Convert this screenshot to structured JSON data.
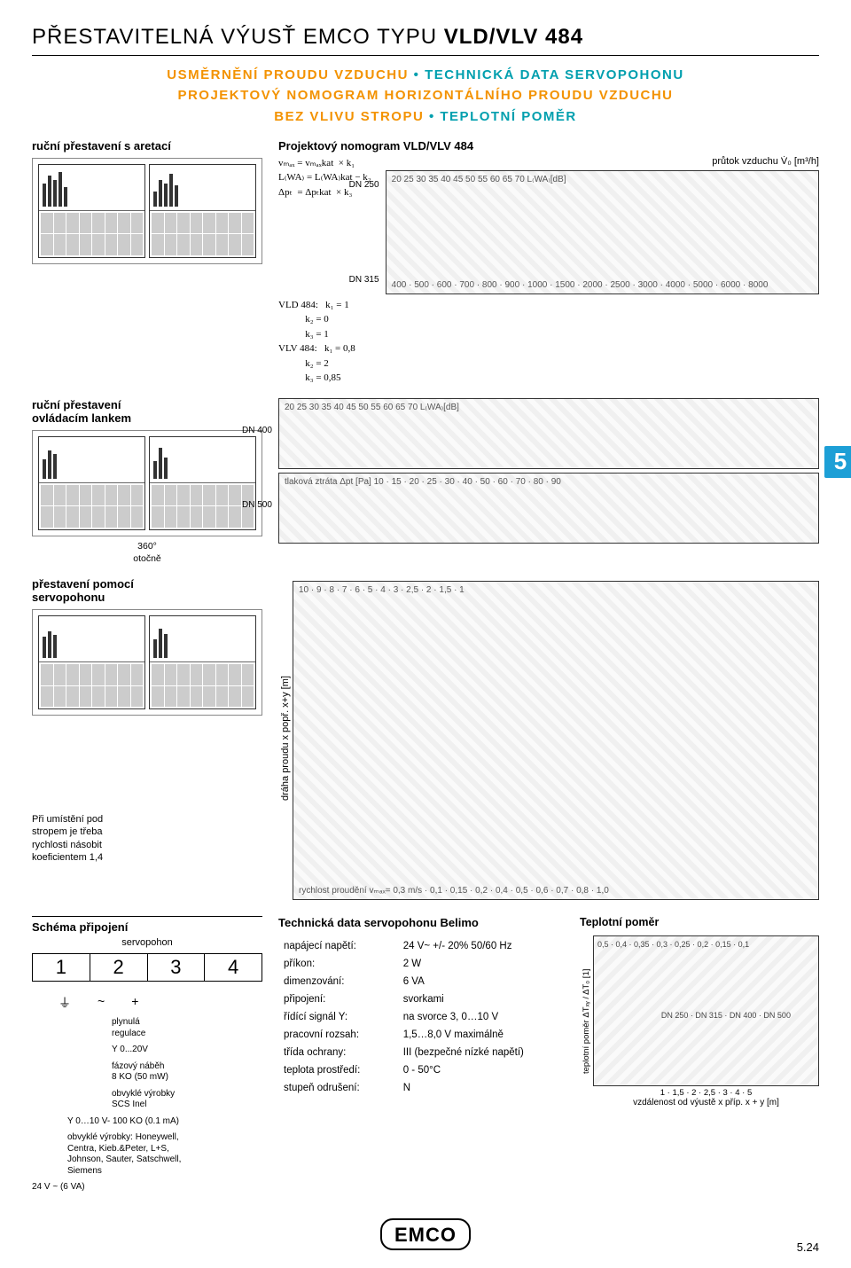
{
  "header": {
    "title_pre": "PŘESTAVITELNÁ VÝUSŤ EMCO TYPU ",
    "title_bold": "VLD/VLV 484",
    "line1a": "USMĚRNĚNÍ PROUDU VZDUCHU",
    "line1b": "TECHNICKÁ DATA SERVOPOHONU",
    "line2a": "PROJEKTOVÝ NOMOGRAM HORIZONTÁLNÍHO PROUDU VZDUCHU",
    "line3a": "BEZ VLIVU STROPU",
    "line3b": "TEPLOTNÍ POMĚR",
    "bullet": "•"
  },
  "col_left": {
    "manual_lock": "ruční přestavení s aretací",
    "cable": "ruční přestavení\novládacím lankem",
    "cable_note": "360°\notočně",
    "servo": "přestavení pomocí\nservopohonu"
  },
  "nomogram": {
    "title": "Projektový nomogram VLD/VLV 484",
    "flow_lbl": "průtok vzduchu V̇₀ [m³/h]",
    "formulas": "vₘₐₓ = vₘₐₓkat  × k₁\nL₍WA₎ = L₍WA₎kat − k₂\nΔpₜ  = Δpₜkat  × k₃",
    "coeffs": "VLD 484:   k₁ = 1\n           k₂ = 0\n           k₃ = 1\nVLV 484:   k₁ = 0,8\n           k₂ = 2\n           k₃ = 0,85",
    "dn": [
      "DN 250",
      "DN 315",
      "DN 400",
      "DN 500"
    ],
    "top_ticks": "400 · 500 · 600 · 700 · 800 · 900 · 1000 · 1500 · 2000 · 2500 · 3000 · 4000 · 5000 · 6000 · 8000",
    "lwa_ticks": "20 25 30 35 40 45 50 55 60 65 70  L₍WA₎[dB]",
    "ploss": "tlaková ztráta  Δpt [Pa]  10 · 15 · 20 · 25 · 30 · 40 · 50 · 60 · 70 · 80 · 90",
    "y_label": "dráha proudu x popř. x+y [m]",
    "y_ticks": "10 · 9 · 8 · 7 · 6 · 5 · 4 · 3 · 2,5 · 2 · 1,5 · 1",
    "v_lines": "rychlost proudění vₘₐₓ= 0,3 m/s  · 0,1 · 0,15 · 0,2 · 0,4 · 0,5 · 0,6 · 0,7 · 0,8 · 1,0",
    "strop_note": "Při umístění pod\nstropem je třeba\nrychlosti násobit\nkoeficientem 1,4"
  },
  "side_marker": "5",
  "schema": {
    "title": "Schéma připojení",
    "servo_label": "servopohon",
    "terminals": [
      "1",
      "2",
      "3",
      "4"
    ],
    "reg_lbl": "plynulá\nregulace",
    "y_lbl": "Y 0...20V",
    "phase_lbl": "fázový náběh\n8 KO (50 mW)",
    "prods_lbl": "obvyklé výrobky\nSCS        Inel",
    "y10_lbl": "Y 0…10 V-   100 KO (0.1 mA)",
    "mfr_lbl": "obvyklé výrobky: Honeywell,\nCentra, Kieb.&Peter, L+S,\nJohnson, Sauter, Satschwell,\nSiemens",
    "supply_lbl": "24 V ~   (6 VA)"
  },
  "techdata": {
    "title": "Technická data servopohonu Belimo",
    "rows": [
      [
        "napájecí napětí:",
        "24 V~ +/- 20% 50/60 Hz"
      ],
      [
        "příkon:",
        "2 W"
      ],
      [
        "dimenzování:",
        "6 VA"
      ],
      [
        "připojení:",
        "svorkami"
      ],
      [
        "řídící signál Y:",
        "na svorce 3,      0…10 V"
      ],
      [
        "pracovní rozsah:",
        "1,5…8,0 V maximálně"
      ],
      [
        "třída ochrany:",
        "III (bezpečné nízké napětí)"
      ],
      [
        "teplota prostředí:",
        "0 - 50°C"
      ],
      [
        "stupeň odrušení:",
        "N"
      ]
    ]
  },
  "temp": {
    "title": "Teplotní poměr",
    "y_label": "teplotní poměr ΔTₓᵧ / ΔT₀ [1]",
    "y_ticks": "0,5 · 0,4 · 0,35 · 0,3 · 0,25 · 0,2 · 0,15 · 0,1",
    "x_label": "vzdálenost od výustě x příp. x + y [m]",
    "x_ticks": "1 · 1,5 · 2 · 2,5 · 3 · 4 · 5",
    "curves": "DN 250 · DN 315 · DN 400 · DN 500"
  },
  "footer": {
    "logo": "EMCO",
    "page": "5.24"
  },
  "colors": {
    "orange": "#f39200",
    "turq": "#009fae",
    "marker": "#1d9fd6"
  }
}
